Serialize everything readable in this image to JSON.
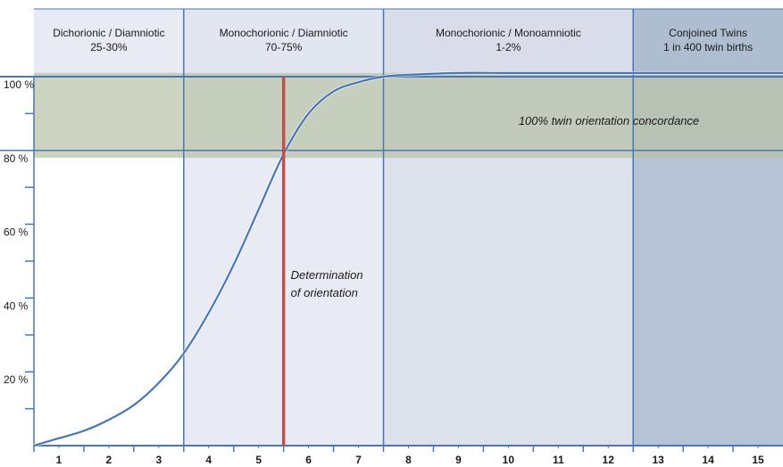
{
  "chart_data": {
    "type": "line",
    "title": "",
    "xlabel": "",
    "ylabel": "",
    "x_categories": [
      "1",
      "2",
      "3",
      "4",
      "5",
      "6",
      "7",
      "8",
      "9",
      "10",
      "11",
      "12",
      "13",
      "14",
      "15"
    ],
    "ylim": [
      0,
      110
    ],
    "y_ticks": [
      {
        "value": 20,
        "label": "20 %"
      },
      {
        "value": 40,
        "label": "40 %"
      },
      {
        "value": 60,
        "label": "60 %"
      },
      {
        "value": 80,
        "label": "80 %"
      },
      {
        "value": 100,
        "label": "100 %"
      }
    ],
    "series": [
      {
        "name": "",
        "color": "#4a77b4",
        "x": [
          0.5,
          1.0,
          1.5,
          2.0,
          2.5,
          3.0,
          3.5,
          4.0,
          4.5,
          5.0,
          5.5,
          6.0,
          6.5,
          7.0,
          7.5,
          8.0,
          9.0,
          10.0,
          11.0,
          12.0,
          13.0,
          14.0,
          15.0,
          15.5
        ],
        "y": [
          0,
          2,
          4,
          7,
          11,
          17,
          25,
          36,
          49,
          64,
          79,
          90,
          96,
          98.5,
          100,
          100.5,
          101,
          101,
          101,
          101,
          101,
          101,
          101,
          101
        ]
      }
    ],
    "regions": [
      {
        "line1": "Dichorionic / Diamniotic",
        "line2": "25-30%",
        "x_start": 0.5,
        "x_end": 3.5,
        "header_color": "#e8ebf3",
        "body_color": "#ffffff"
      },
      {
        "line1": "Monochorionic / Diamniotic",
        "line2": "70-75%",
        "x_start": 3.5,
        "x_end": 7.5,
        "header_color": "#e2e6f0",
        "body_color": "#e8ebf3"
      },
      {
        "line1": "Monochorionic / Monoamniotic",
        "line2": "1-2%",
        "x_start": 7.5,
        "x_end": 12.5,
        "header_color": "#d8dde9",
        "body_color": "#dce1ec"
      },
      {
        "line1": "Conjoined Twins",
        "line2": "1 in 400 twin births",
        "x_start": 12.5,
        "x_end": 15.5,
        "header_color": "#aebdd0",
        "body_color": "#b6c3d4"
      }
    ],
    "concordance_band": {
      "y_start": 78,
      "y_end": 101,
      "color": "#b8c2a8",
      "label": "100% twin orientation concordance"
    },
    "determination_line": {
      "x": 5.5,
      "color": "#c0504d",
      "label_line1": "Determination",
      "label_line2": "of orientation"
    },
    "grid_color": "#4a77b4"
  }
}
